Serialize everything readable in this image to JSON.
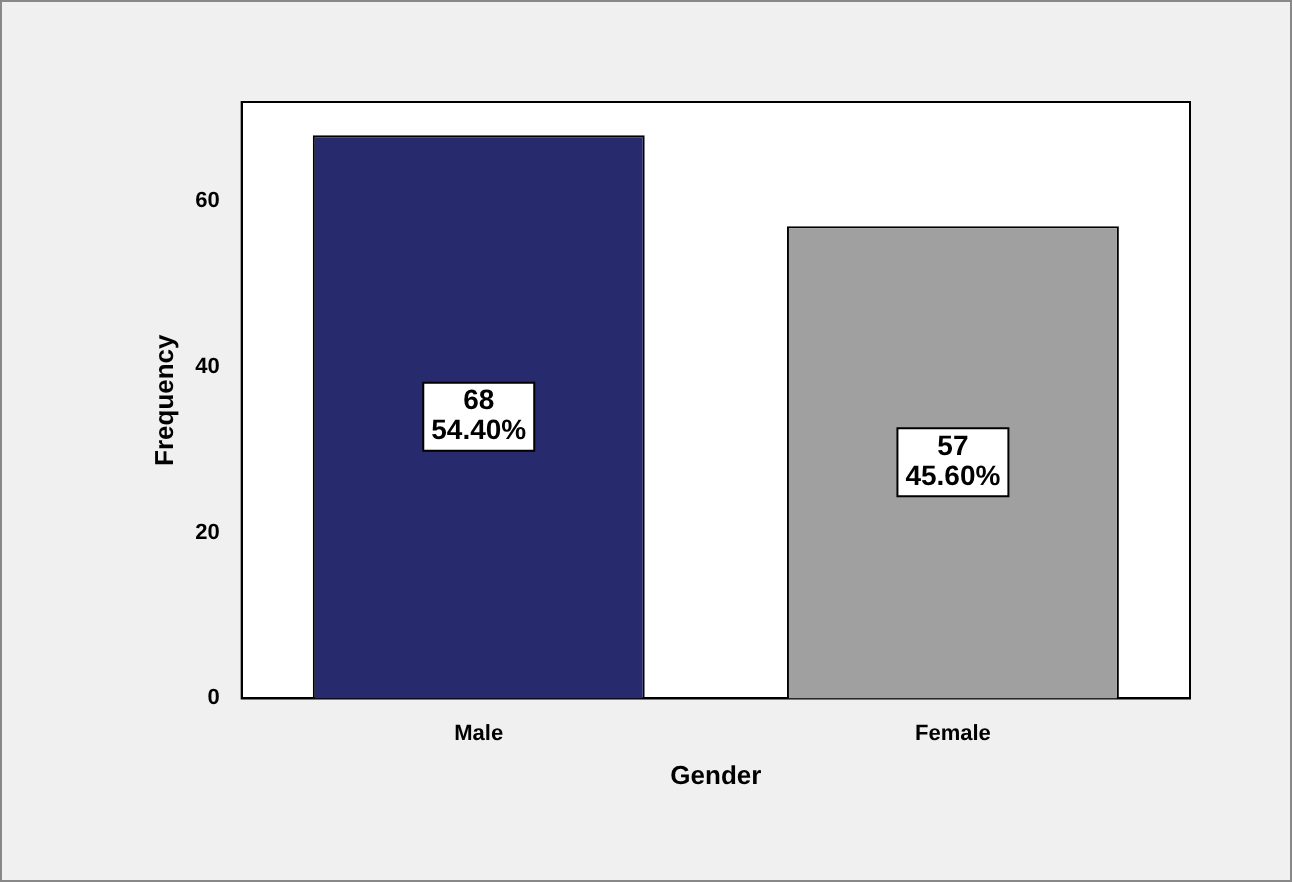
{
  "chart_data": {
    "type": "bar",
    "xlabel": "Gender",
    "ylabel": "Frequency",
    "categories": [
      "Male",
      "Female"
    ],
    "series": [
      {
        "colors": [
          "#282a6e",
          "#a0a0a0"
        ],
        "values": [
          68,
          57
        ],
        "value_labels": [
          "68\n54.40%",
          "57\n45.60%"
        ]
      }
    ],
    "ylim": [
      0,
      72
    ],
    "yticks": [
      0,
      20,
      40,
      60
    ],
    "grid": false,
    "legend": false
  }
}
